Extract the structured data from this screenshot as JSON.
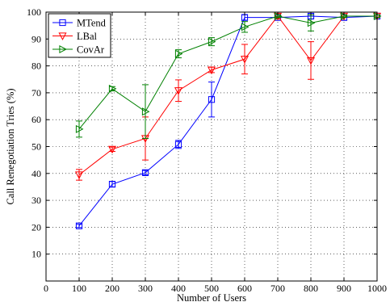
{
  "chart_data": {
    "type": "line",
    "xlabel": "Number of Users",
    "ylabel": "Call Renegotiation Tries (%)",
    "xlim": [
      0,
      1000
    ],
    "ylim": [
      0,
      100
    ],
    "xticks": [
      0,
      100,
      200,
      300,
      400,
      500,
      600,
      700,
      800,
      900,
      1000
    ],
    "yticks": [
      10,
      20,
      30,
      40,
      50,
      60,
      70,
      80,
      90,
      100
    ],
    "grid": true,
    "legend_position": "top-left",
    "x": [
      100,
      200,
      300,
      400,
      500,
      600,
      700,
      800,
      900,
      1000
    ],
    "series": [
      {
        "name": "MTend",
        "color": "#0000ff",
        "marker": "square",
        "values": [
          20.5,
          36,
          40.3,
          50.8,
          67.5,
          98,
          98,
          98.5,
          98,
          98.5
        ],
        "error": [
          0.6,
          1,
          0.8,
          1.5,
          6.5,
          1,
          0.5,
          1,
          1,
          0.5
        ]
      },
      {
        "name": "LBal",
        "color": "#ff0000",
        "marker": "triangle-down",
        "values": [
          39.5,
          49,
          53,
          70.8,
          78.5,
          82.5,
          98.5,
          82,
          98.5,
          98.5
        ],
        "error": [
          2,
          0.8,
          8,
          4,
          1,
          5.5,
          1,
          7,
          0.5,
          0.5
        ]
      },
      {
        "name": "CovAr",
        "color": "#008000",
        "marker": "triangle-right",
        "values": [
          56.5,
          71.5,
          63,
          84.5,
          89,
          94.5,
          98.5,
          96,
          98.5,
          98.5
        ],
        "error": [
          3,
          0.8,
          10,
          1.5,
          1.5,
          2,
          0.5,
          3,
          0.5,
          0.5
        ]
      }
    ]
  }
}
